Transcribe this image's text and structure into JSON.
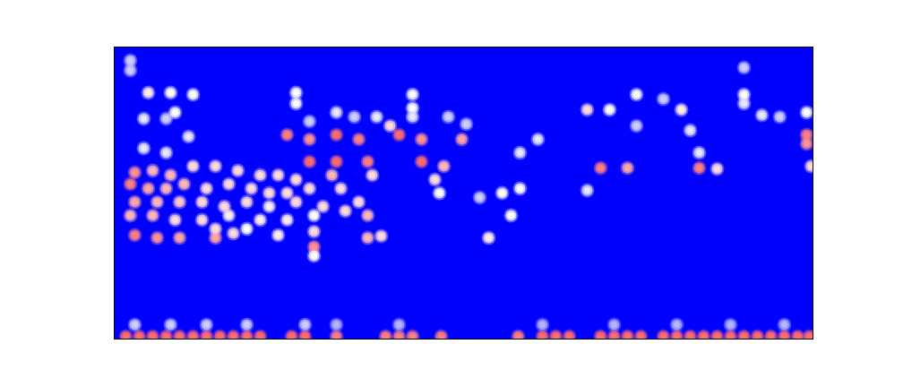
{
  "chart_data": {
    "type": "heatmap",
    "xlim": [
      0,
      780
    ],
    "ylim": [
      0,
      326
    ],
    "xticks": [],
    "yticks": [],
    "tick_labels": false,
    "zlim": [
      0,
      1
    ],
    "cells": [
      [
        18,
        311,
        0.4
      ],
      [
        18,
        300,
        0.4
      ],
      [
        38,
        275,
        0.55
      ],
      [
        63,
        275,
        0.5
      ],
      [
        88,
        273,
        0.5
      ],
      [
        33,
        246,
        0.45
      ],
      [
        68,
        253,
        0.5
      ],
      [
        58,
        246,
        0.4
      ],
      [
        83,
        226,
        0.45
      ],
      [
        33,
        213,
        0.45
      ],
      [
        58,
        208,
        0.45
      ],
      [
        23,
        186,
        0.8
      ],
      [
        43,
        188,
        0.7
      ],
      [
        63,
        183,
        0.7
      ],
      [
        88,
        193,
        0.6
      ],
      [
        113,
        193,
        0.6
      ],
      [
        138,
        188,
        0.6
      ],
      [
        163,
        183,
        0.6
      ],
      [
        183,
        183,
        0.6
      ],
      [
        203,
        178,
        0.6
      ],
      [
        18,
        173,
        0.85
      ],
      [
        38,
        168,
        0.75
      ],
      [
        58,
        168,
        0.7
      ],
      [
        78,
        173,
        0.7
      ],
      [
        103,
        168,
        0.6
      ],
      [
        128,
        173,
        0.6
      ],
      [
        153,
        168,
        0.6
      ],
      [
        173,
        163,
        0.6
      ],
      [
        193,
        163,
        0.6
      ],
      [
        218,
        168,
        0.6
      ],
      [
        23,
        153,
        0.75
      ],
      [
        48,
        153,
        0.7
      ],
      [
        73,
        153,
        0.65
      ],
      [
        98,
        153,
        0.6
      ],
      [
        123,
        148,
        0.6
      ],
      [
        148,
        153,
        0.6
      ],
      [
        173,
        148,
        0.55
      ],
      [
        203,
        153,
        0.6
      ],
      [
        233,
        148,
        0.6
      ],
      [
        258,
        143,
        0.6
      ],
      [
        283,
        138,
        0.7
      ],
      [
        273,
        153,
        0.6
      ],
      [
        18,
        138,
        0.7
      ],
      [
        43,
        138,
        0.7
      ],
      [
        68,
        133,
        0.6
      ],
      [
        98,
        133,
        0.6
      ],
      [
        128,
        138,
        0.55
      ],
      [
        163,
        133,
        0.55
      ],
      [
        193,
        133,
        0.55
      ],
      [
        223,
        138,
        0.5
      ],
      [
        23,
        116,
        0.85
      ],
      [
        48,
        113,
        0.8
      ],
      [
        73,
        113,
        0.75
      ],
      [
        113,
        113,
        0.75
      ],
      [
        133,
        118,
        0.6
      ],
      [
        183,
        116,
        0.55
      ],
      [
        223,
        120,
        0.6
      ],
      [
        283,
        113,
        0.7
      ],
      [
        298,
        115,
        0.6
      ],
      [
        113,
        123,
        0.6
      ],
      [
        148,
        123,
        0.5
      ],
      [
        223,
        103,
        0.8
      ],
      [
        223,
        93,
        0.5
      ],
      [
        193,
        228,
        0.85
      ],
      [
        218,
        223,
        0.8
      ],
      [
        248,
        228,
        0.9
      ],
      [
        273,
        223,
        0.85
      ],
      [
        318,
        228,
        0.9
      ],
      [
        343,
        223,
        0.8
      ],
      [
        388,
        223,
        0.75
      ],
      [
        308,
        238,
        0.6
      ],
      [
        218,
        198,
        0.9
      ],
      [
        248,
        198,
        0.9
      ],
      [
        283,
        198,
        0.85
      ],
      [
        343,
        198,
        0.9
      ],
      [
        368,
        193,
        0.7
      ],
      [
        243,
        183,
        0.7
      ],
      [
        253,
        168,
        0.6
      ],
      [
        288,
        183,
        0.6
      ],
      [
        358,
        178,
        0.6
      ],
      [
        363,
        163,
        0.5
      ],
      [
        203,
        275,
        0.5
      ],
      [
        203,
        263,
        0.5
      ],
      [
        248,
        253,
        0.45
      ],
      [
        268,
        248,
        0.4
      ],
      [
        293,
        248,
        0.45
      ],
      [
        333,
        273,
        0.5
      ],
      [
        333,
        258,
        0.5
      ],
      [
        333,
        248,
        0.45
      ],
      [
        373,
        248,
        0.4
      ],
      [
        218,
        243,
        0.4
      ],
      [
        393,
        240,
        0.4
      ],
      [
        433,
        163,
        0.5
      ],
      [
        453,
        208,
        0.45
      ],
      [
        453,
        168,
        0.5
      ],
      [
        473,
        223,
        0.45
      ],
      [
        443,
        138,
        0.5
      ],
      [
        418,
        113,
        0.55
      ],
      [
        408,
        158,
        0.4
      ],
      [
        528,
        256,
        0.6
      ],
      [
        553,
        256,
        0.5
      ],
      [
        583,
        273,
        0.5
      ],
      [
        613,
        268,
        0.4
      ],
      [
        633,
        256,
        0.55
      ],
      [
        643,
        233,
        0.45
      ],
      [
        653,
        208,
        0.45
      ],
      [
        528,
        166,
        0.45
      ],
      [
        543,
        191,
        0.85
      ],
      [
        573,
        191,
        0.75
      ],
      [
        653,
        191,
        0.85
      ],
      [
        673,
        190,
        0.6
      ],
      [
        703,
        303,
        0.4
      ],
      [
        703,
        273,
        0.5
      ],
      [
        703,
        263,
        0.45
      ],
      [
        723,
        250,
        0.45
      ],
      [
        743,
        248,
        0.4
      ],
      [
        773,
        253,
        0.5
      ],
      [
        773,
        228,
        0.85
      ],
      [
        773,
        218,
        0.8
      ],
      [
        778,
        193,
        0.6
      ],
      [
        583,
        238,
        0.4
      ],
      [
        13,
        3,
        0.9
      ],
      [
        28,
        3,
        0.9
      ],
      [
        43,
        3,
        0.9
      ],
      [
        58,
        3,
        0.9
      ],
      [
        73,
        3,
        0.9
      ],
      [
        88,
        3,
        0.9
      ],
      [
        103,
        3,
        0.9
      ],
      [
        118,
        3,
        0.9
      ],
      [
        133,
        3,
        0.9
      ],
      [
        148,
        3,
        0.9
      ],
      [
        163,
        3,
        0.9
      ],
      [
        198,
        3,
        0.9
      ],
      [
        213,
        3,
        0.9
      ],
      [
        248,
        3,
        0.85
      ],
      [
        303,
        3,
        0.85
      ],
      [
        318,
        3,
        0.85
      ],
      [
        333,
        3,
        0.85
      ],
      [
        365,
        3,
        0.85
      ],
      [
        451,
        3,
        0.85
      ],
      [
        478,
        3,
        0.9
      ],
      [
        493,
        3,
        0.9
      ],
      [
        508,
        3,
        0.9
      ],
      [
        543,
        3,
        0.9
      ],
      [
        558,
        3,
        0.9
      ],
      [
        573,
        3,
        0.9
      ],
      [
        588,
        3,
        0.9
      ],
      [
        613,
        3,
        0.9
      ],
      [
        628,
        3,
        0.9
      ],
      [
        643,
        3,
        0.9
      ],
      [
        658,
        3,
        0.9
      ],
      [
        673,
        3,
        0.9
      ],
      [
        688,
        3,
        0.9
      ],
      [
        703,
        3,
        0.9
      ],
      [
        718,
        3,
        0.9
      ],
      [
        733,
        3,
        0.9
      ],
      [
        748,
        3,
        0.9
      ],
      [
        763,
        3,
        0.9
      ],
      [
        776,
        3,
        0.9
      ],
      [
        23,
        16,
        0.4
      ],
      [
        63,
        16,
        0.4
      ],
      [
        103,
        16,
        0.4
      ],
      [
        148,
        16,
        0.4
      ],
      [
        213,
        16,
        0.4
      ],
      [
        248,
        16,
        0.35
      ],
      [
        318,
        16,
        0.35
      ],
      [
        478,
        16,
        0.35
      ],
      [
        558,
        16,
        0.35
      ],
      [
        628,
        16,
        0.35
      ],
      [
        688,
        16,
        0.35
      ],
      [
        748,
        16,
        0.35
      ]
    ]
  }
}
